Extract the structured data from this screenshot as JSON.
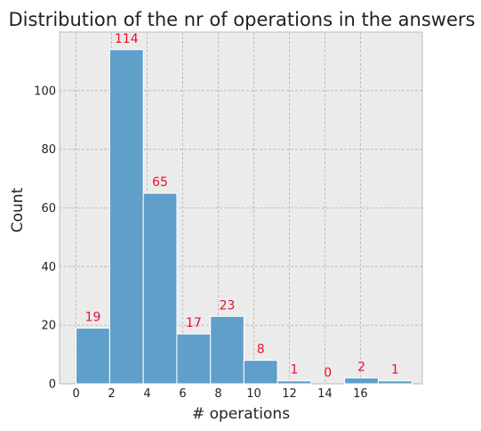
{
  "chart_data": {
    "type": "bar",
    "title": "Distribution of the nr of operations in the answers",
    "xlabel": "# operations",
    "ylabel": "Count",
    "bins": [
      {
        "start": 0.0,
        "end": 1.89,
        "value": 19
      },
      {
        "start": 1.89,
        "end": 3.78,
        "value": 114
      },
      {
        "start": 3.78,
        "end": 5.67,
        "value": 65
      },
      {
        "start": 5.67,
        "end": 7.56,
        "value": 17
      },
      {
        "start": 7.56,
        "end": 9.44,
        "value": 23
      },
      {
        "start": 9.44,
        "end": 11.33,
        "value": 8
      },
      {
        "start": 11.33,
        "end": 13.22,
        "value": 1
      },
      {
        "start": 13.22,
        "end": 15.11,
        "value": 0
      },
      {
        "start": 15.11,
        "end": 17.0,
        "value": 2
      },
      {
        "start": 17.0,
        "end": 18.89,
        "value": 1
      }
    ],
    "data_labels": [
      "19",
      "114",
      "65",
      "17",
      "23",
      "8",
      "1",
      "0",
      "2",
      "1"
    ],
    "x_ticks": [
      0,
      2,
      4,
      6,
      8,
      10,
      12,
      14,
      16
    ],
    "y_ticks": [
      0,
      20,
      40,
      60,
      80,
      100
    ],
    "xlim": [
      -0.93,
      19.48
    ],
    "ylim": [
      0,
      120
    ],
    "grid": true,
    "colors": {
      "bar": "#5f9fc9",
      "label": "#e8102e",
      "background": "#ebebeb"
    }
  }
}
